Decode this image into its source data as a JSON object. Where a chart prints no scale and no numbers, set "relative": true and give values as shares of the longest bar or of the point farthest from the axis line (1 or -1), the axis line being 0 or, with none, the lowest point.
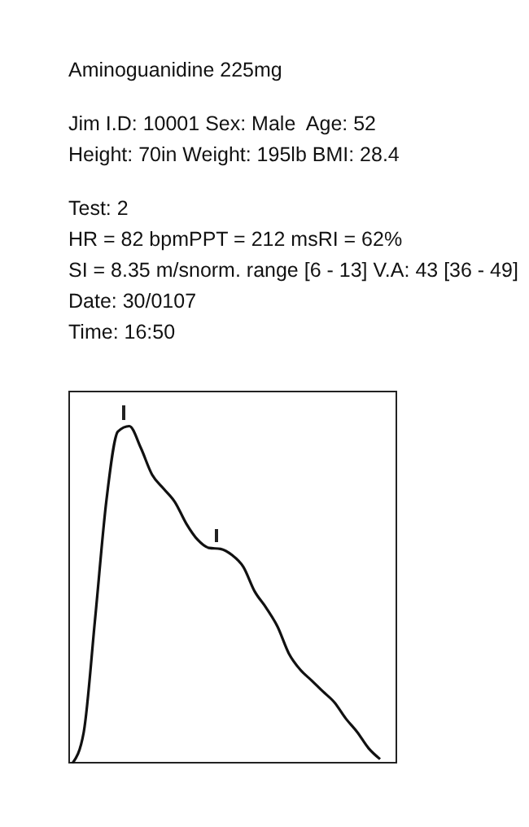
{
  "chart_data": {
    "type": "line",
    "title": "Aminoguanidine 225mg",
    "annotations": [
      "Jim I.D: 10001 Sex: Male  Age: 52",
      "Height: 70in Weight: 195lb BMI: 28.4",
      "Test: 2",
      "HR = 82 bpmPPT = 212 msRI = 62%",
      "SI = 8.35 m/snorm. range [6 - 13] V.A: 43 [36 - 49]",
      "Date: 30/0107",
      "Time: 16:50"
    ],
    "relative": true,
    "categories": [
      null,
      null,
      null,
      null,
      null,
      null,
      null,
      null,
      null,
      null,
      null,
      null,
      null,
      null,
      null,
      null,
      null,
      null,
      null,
      null,
      null,
      null,
      null,
      null,
      null,
      null,
      null,
      null
    ],
    "series": [
      {
        "color": "#111111",
        "values": [
          0,
          0.093,
          0.43,
          0.783,
          0.984,
          1,
          0.936,
          0.856,
          0.815,
          0.775,
          0.711,
          0.663,
          0.639,
          0.636,
          0.618,
          0.583,
          0.51,
          0.462,
          0.406,
          0.326,
          0.278,
          0.246,
          0.213,
          0.181,
          0.133,
          0.093,
          0.045,
          0.013
        ]
      }
    ],
    "grid": false,
    "legend": false,
    "marker": "none",
    "line_style": "solid"
  }
}
